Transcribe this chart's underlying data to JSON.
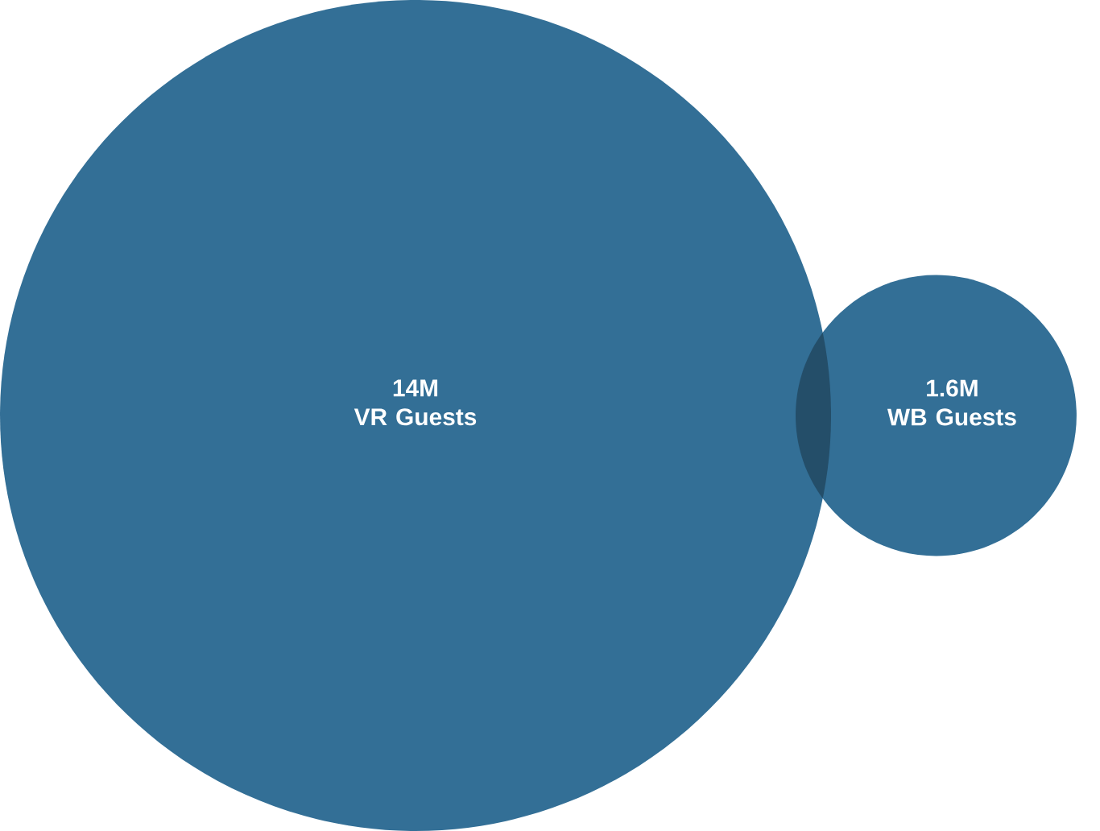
{
  "chart_data": {
    "type": "other",
    "categories": [
      "VR Guests",
      "WB Guests"
    ],
    "values": [
      14,
      1.6
    ],
    "value_labels": [
      "14M",
      "1.6M"
    ],
    "colors": [
      "#336f96",
      "#336f96"
    ]
  }
}
